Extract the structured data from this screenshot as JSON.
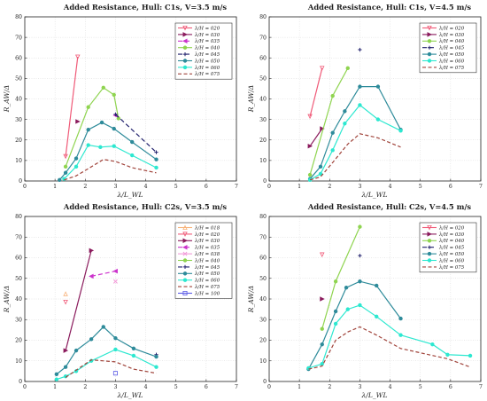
{
  "figure": {
    "title": "",
    "panel_count": 4
  },
  "chart_data": [
    {
      "type": "line",
      "title": "Added Resistance, Hull: C1s, V=3.5 m/s",
      "xlabel": "λ/L_WL",
      "ylabel": "R_AW/Δ",
      "xlim": [
        0,
        7
      ],
      "ylim": [
        0,
        80
      ],
      "xticks": [
        "0",
        "1",
        "2",
        "3",
        "4",
        "5",
        "6",
        "7"
      ],
      "yticks": [
        "0",
        "10",
        "20",
        "30",
        "40",
        "50",
        "60",
        "70",
        "80"
      ],
      "grid": true,
      "legend_position": "top-right",
      "series": [
        {
          "name": "λ/H = 020",
          "color": "#f05a78",
          "dash": "",
          "marker": "triangle-down",
          "x": [
            1.35,
            1.75
          ],
          "y": [
            12.0,
            60.5
          ]
        },
        {
          "name": "λ/H = 030",
          "color": "#8a1a5c",
          "dash": "",
          "marker": "triangle-right",
          "x": [
            1.75
          ],
          "y": [
            29.0
          ]
        },
        {
          "name": "λ/H = 035",
          "color": "#cc33cc",
          "dash": "5 3",
          "marker": "triangle-left",
          "x": [
            3.0
          ],
          "y": [
            32.0
          ]
        },
        {
          "name": "λ/H = 040",
          "color": "#8fd450",
          "dash": "",
          "marker": "circle",
          "x": [
            1.35,
            2.1,
            2.6,
            2.95,
            3.1
          ],
          "y": [
            7.0,
            36.0,
            45.5,
            42.0,
            30.5
          ]
        },
        {
          "name": "λ/H = 045",
          "color": "#22226e",
          "dash": "5 3",
          "marker": "plus",
          "x": [
            3.0,
            4.35
          ],
          "y": [
            32.5,
            14.0
          ]
        },
        {
          "name": "λ/H = 050",
          "color": "#2e8b9a",
          "dash": "",
          "marker": "circle",
          "x": [
            1.15,
            1.35,
            1.7,
            2.1,
            2.55,
            2.95,
            3.55,
            4.35
          ],
          "y": [
            0.5,
            4.0,
            11.0,
            25.0,
            28.5,
            25.5,
            19.0,
            10.5
          ]
        },
        {
          "name": "λ/H = 060",
          "color": "#2de8d0",
          "dash": "",
          "marker": "circle",
          "x": [
            1.3,
            1.7,
            2.1,
            2.5,
            2.95,
            3.55,
            4.35
          ],
          "y": [
            1.0,
            7.0,
            17.5,
            16.5,
            17.0,
            12.5,
            6.5
          ]
        },
        {
          "name": "λ/H = 075",
          "color": "#a0433a",
          "dash": "4 2.5",
          "marker": "none",
          "x": [
            1.3,
            1.7,
            2.1,
            2.6,
            3.0,
            3.55,
            4.35
          ],
          "y": [
            0.5,
            2.5,
            6.0,
            10.5,
            9.5,
            6.5,
            4.0
          ]
        }
      ]
    },
    {
      "type": "line",
      "title": "Added Resistance, Hull: C1s, V=4.5 m/s",
      "xlabel": "λ/L_WL",
      "ylabel": "R_AW/Δ",
      "xlim": [
        0,
        7
      ],
      "ylim": [
        0,
        80
      ],
      "xticks": [
        "0",
        "1",
        "2",
        "3",
        "4",
        "5",
        "6",
        "7"
      ],
      "yticks": [
        "0",
        "10",
        "20",
        "30",
        "40",
        "50",
        "60",
        "70",
        "80"
      ],
      "grid": true,
      "legend_position": "top-right",
      "series": [
        {
          "name": "λ/H = 020",
          "color": "#f05a78",
          "dash": "",
          "marker": "triangle-down",
          "x": [
            1.35,
            1.75
          ],
          "y": [
            31.5,
            55.0
          ]
        },
        {
          "name": "λ/H = 030",
          "color": "#8a1a5c",
          "dash": "",
          "marker": "triangle-right",
          "x": [
            1.35,
            1.75
          ],
          "y": [
            17.0,
            25.5
          ]
        },
        {
          "name": "λ/H = 040",
          "color": "#8fd450",
          "dash": "",
          "marker": "circle",
          "x": [
            1.35,
            2.1,
            2.6
          ],
          "y": [
            3.0,
            41.5,
            55.0
          ]
        },
        {
          "name": "λ/H = 045",
          "color": "#22226e",
          "dash": "5 3",
          "marker": "plus",
          "x": [
            3.0
          ],
          "y": [
            64.0
          ]
        },
        {
          "name": "λ/H = 050",
          "color": "#2e8b9a",
          "dash": "",
          "marker": "circle",
          "x": [
            1.35,
            1.7,
            2.1,
            2.5,
            3.0,
            3.6,
            4.35
          ],
          "y": [
            1.0,
            7.0,
            23.5,
            34.0,
            46.0,
            46.0,
            25.0
          ]
        },
        {
          "name": "λ/H = 060",
          "color": "#2de8d0",
          "dash": "",
          "marker": "circle",
          "x": [
            1.35,
            1.7,
            2.1,
            2.5,
            3.0,
            3.6,
            4.35
          ],
          "y": [
            0.5,
            3.5,
            15.0,
            28.0,
            37.0,
            30.0,
            24.5
          ]
        },
        {
          "name": "λ/H = 075",
          "color": "#a0433a",
          "dash": "4 2.5",
          "marker": "none",
          "x": [
            1.35,
            1.7,
            2.1,
            2.6,
            3.0,
            3.6,
            4.35
          ],
          "y": [
            0.5,
            2.0,
            9.0,
            18.0,
            23.0,
            21.0,
            16.5
          ]
        }
      ]
    },
    {
      "type": "line",
      "title": "Added Resistance, Hull: C2s, V=3.5 m/s",
      "xlabel": "λ/L_WL",
      "ylabel": "R_AW/Δ",
      "xlim": [
        0,
        7
      ],
      "ylim": [
        0,
        80
      ],
      "xticks": [
        "0",
        "1",
        "2",
        "3",
        "4",
        "5",
        "6",
        "7"
      ],
      "yticks": [
        "0",
        "10",
        "20",
        "30",
        "40",
        "50",
        "60",
        "70",
        "80"
      ],
      "grid": true,
      "legend_position": "top-right",
      "series": [
        {
          "name": "λ/H = 018",
          "color": "#f7b27a",
          "dash": "",
          "marker": "triangle-up",
          "x": [
            1.35
          ],
          "y": [
            42.5
          ]
        },
        {
          "name": "λ/H = 020",
          "color": "#f05a78",
          "dash": "",
          "marker": "triangle-down",
          "x": [
            1.35
          ],
          "y": [
            38.5
          ]
        },
        {
          "name": "λ/H = 030",
          "color": "#8a1a5c",
          "dash": "",
          "marker": "triangle-right",
          "x": [
            1.35,
            2.2
          ],
          "y": [
            15.0,
            63.5
          ]
        },
        {
          "name": "λ/H = 035",
          "color": "#cc33cc",
          "dash": "5 3",
          "marker": "triangle-left",
          "x": [
            2.2,
            3.0
          ],
          "y": [
            51.0,
            53.5
          ]
        },
        {
          "name": "λ/H = 038",
          "color": "#f29ad8",
          "dash": "",
          "marker": "x",
          "x": [
            3.0
          ],
          "y": [
            48.5
          ]
        },
        {
          "name": "λ/H = 040",
          "color": "#8fd450",
          "dash": "",
          "marker": "circle",
          "x": [],
          "y": []
        },
        {
          "name": "λ/H = 045",
          "color": "#22226e",
          "dash": "5 3",
          "marker": "plus",
          "x": [
            4.35
          ],
          "y": [
            13.0
          ]
        },
        {
          "name": "λ/H = 050",
          "color": "#2e8b9a",
          "dash": "",
          "marker": "circle",
          "x": [
            1.05,
            1.35,
            1.7,
            2.2,
            2.6,
            3.0,
            3.6,
            4.35
          ],
          "y": [
            3.5,
            7.0,
            15.0,
            20.5,
            26.5,
            21.0,
            16.0,
            12.0
          ]
        },
        {
          "name": "λ/H = 060",
          "color": "#2de8d0",
          "dash": "",
          "marker": "circle",
          "x": [
            1.05,
            1.35,
            1.7,
            2.2,
            3.0,
            3.6,
            4.35
          ],
          "y": [
            1.0,
            2.5,
            5.0,
            10.0,
            15.5,
            12.5,
            7.0
          ]
        },
        {
          "name": "λ/H = 075",
          "color": "#a0433a",
          "dash": "4 2.5",
          "marker": "none",
          "x": [
            1.35,
            2.2,
            3.0,
            3.6,
            4.35
          ],
          "y": [
            2.0,
            10.5,
            9.5,
            6.0,
            4.0
          ]
        },
        {
          "name": "λ/H = 100",
          "color": "#5a5ae6",
          "dash": "",
          "marker": "square",
          "x": [
            3.0
          ],
          "y": [
            4.0
          ]
        }
      ]
    },
    {
      "type": "line",
      "title": "Added Resistance, Hull: C2s, V=4.5 m/s",
      "xlabel": "λ/L_WL",
      "ylabel": "R_AW/Δ",
      "xlim": [
        0,
        7
      ],
      "ylim": [
        0,
        80
      ],
      "xticks": [
        "0",
        "1",
        "2",
        "3",
        "4",
        "5",
        "6",
        "7"
      ],
      "yticks": [
        "0",
        "10",
        "20",
        "30",
        "40",
        "50",
        "60",
        "70",
        "80"
      ],
      "grid": true,
      "legend_position": "top-right",
      "series": [
        {
          "name": "λ/H = 020",
          "color": "#f05a78",
          "dash": "",
          "marker": "triangle-down",
          "x": [
            1.75
          ],
          "y": [
            61.5
          ]
        },
        {
          "name": "λ/H = 030",
          "color": "#8a1a5c",
          "dash": "",
          "marker": "triangle-right",
          "x": [
            1.75
          ],
          "y": [
            40.0
          ]
        },
        {
          "name": "λ/H = 040",
          "color": "#8fd450",
          "dash": "",
          "marker": "circle",
          "x": [
            1.75,
            2.2,
            3.0
          ],
          "y": [
            25.5,
            48.5,
            75.0
          ]
        },
        {
          "name": "λ/H = 045",
          "color": "#22226e",
          "dash": "5 3",
          "marker": "plus",
          "x": [
            3.0
          ],
          "y": [
            61.0
          ]
        },
        {
          "name": "λ/H = 050",
          "color": "#2e8b9a",
          "dash": "",
          "marker": "circle",
          "x": [
            1.3,
            1.75,
            2.2,
            2.55,
            3.0,
            3.55,
            4.35
          ],
          "y": [
            6.0,
            18.0,
            34.0,
            45.5,
            48.5,
            46.5,
            30.5
          ]
        },
        {
          "name": "λ/H = 060",
          "color": "#2de8d0",
          "dash": "",
          "marker": "circle",
          "x": [
            1.3,
            1.75,
            2.2,
            2.6,
            3.0,
            3.55,
            4.35,
            5.4,
            5.9,
            6.65
          ],
          "y": [
            6.5,
            8.5,
            28.0,
            35.0,
            37.0,
            31.5,
            22.5,
            18.0,
            13.0,
            12.5
          ]
        },
        {
          "name": "λ/H = 075",
          "color": "#a0433a",
          "dash": "4 2.5",
          "marker": "none",
          "x": [
            1.3,
            1.75,
            2.2,
            2.6,
            3.0,
            3.55,
            4.35,
            5.9,
            6.65
          ],
          "y": [
            6.0,
            7.5,
            20.0,
            24.0,
            26.5,
            22.5,
            16.0,
            11.0,
            7.0
          ]
        }
      ]
    }
  ]
}
